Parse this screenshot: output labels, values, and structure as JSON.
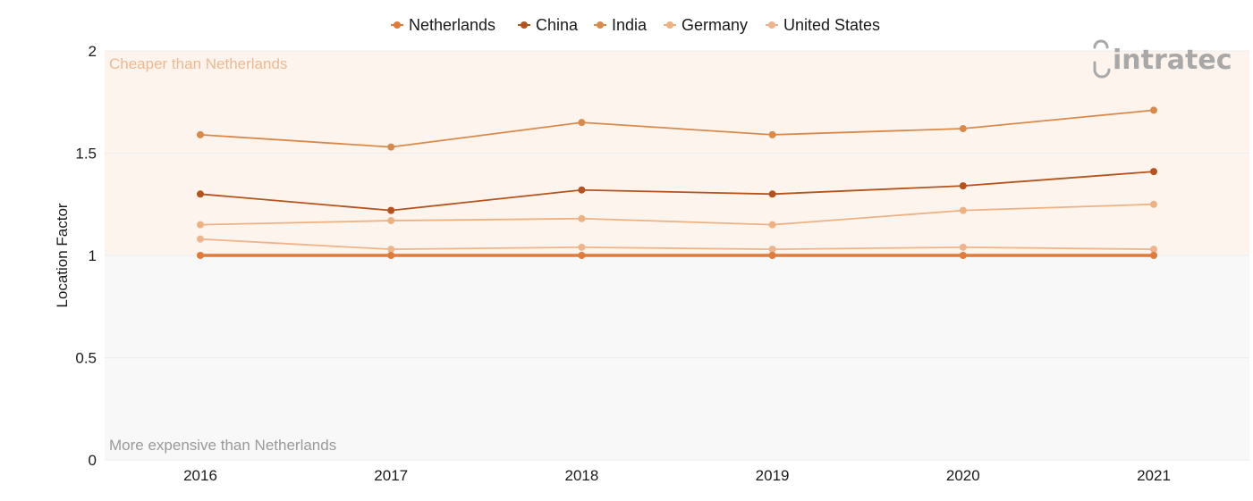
{
  "chart_data": {
    "type": "line",
    "x": [
      "2016",
      "2017",
      "2018",
      "2019",
      "2020",
      "2021"
    ],
    "ylabel": "Location Factor",
    "ylim": [
      0,
      2
    ],
    "yticks": [
      0,
      0.5,
      1,
      1.5,
      2
    ],
    "ytick_labels": [
      "0",
      "0.5",
      "1",
      "1.5",
      "2"
    ],
    "legend_position": "top-center",
    "series": [
      {
        "name": "Netherlands",
        "color": "#e07b39",
        "values": [
          1.0,
          1.0,
          1.0,
          1.0,
          1.0,
          1.0
        ]
      },
      {
        "name": "China",
        "color": "#b5531c",
        "values": [
          1.3,
          1.22,
          1.32,
          1.3,
          1.34,
          1.41
        ]
      },
      {
        "name": "India",
        "color": "#d98a4b",
        "values": [
          1.59,
          1.53,
          1.65,
          1.59,
          1.62,
          1.71
        ]
      },
      {
        "name": "Germany",
        "color": "#eeb182",
        "values": [
          1.15,
          1.17,
          1.18,
          1.15,
          1.22,
          1.25
        ]
      },
      {
        "name": "United States",
        "color": "#f0b48c",
        "values": [
          1.08,
          1.03,
          1.04,
          1.03,
          1.04,
          1.03
        ]
      }
    ],
    "regions": {
      "upper_label": "Cheaper than Netherlands",
      "lower_label": "More expensive than Netherlands",
      "upper_color": "#fdf4ee",
      "lower_color": "#f8f8f8",
      "upper_text_color": "#efb98f",
      "lower_text_color": "#9a9a9a"
    },
    "grid": true
  },
  "logo": {
    "text": "intratec",
    "color": "#a8a8a8"
  }
}
